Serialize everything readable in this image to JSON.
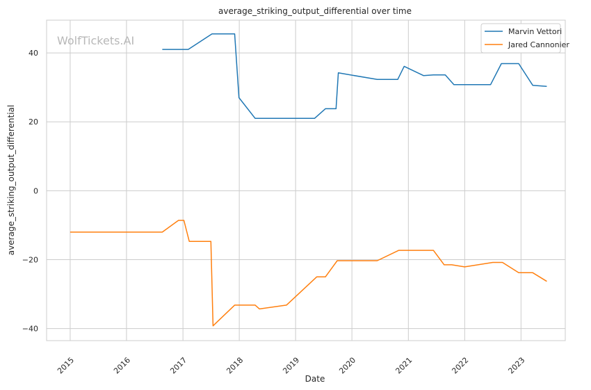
{
  "chart_data": {
    "type": "line",
    "title": "average_striking_output_differential over time",
    "xlabel": "Date",
    "ylabel": "average_striking_output_differential",
    "watermark": "WolfTickets.AI",
    "xlim": [
      "2014-08-01",
      "2023-10-15"
    ],
    "ylim": [
      -43.5,
      49.5
    ],
    "x_ticks": [
      "2015",
      "2016",
      "2017",
      "2018",
      "2019",
      "2020",
      "2021",
      "2022",
      "2023"
    ],
    "y_ticks": [
      -40,
      -20,
      0,
      20,
      40
    ],
    "y_tick_labels": [
      "−40",
      "−20",
      "0",
      "20",
      "40"
    ],
    "grid": true,
    "legend_position": "top-right",
    "series": [
      {
        "name": "Marvin Vettori",
        "color": "#1f77b4",
        "points": [
          [
            "2016-08-20",
            41.0
          ],
          [
            "2017-02-04",
            41.0
          ],
          [
            "2017-07-08",
            45.5
          ],
          [
            "2017-12-02",
            45.5
          ],
          [
            "2017-12-30",
            27.0
          ],
          [
            "2018-04-14",
            21.0
          ],
          [
            "2019-05-04",
            21.0
          ],
          [
            "2019-07-13",
            23.8
          ],
          [
            "2019-09-20",
            23.8
          ],
          [
            "2019-10-05",
            34.2
          ],
          [
            "2020-06-13",
            32.3
          ],
          [
            "2020-10-24",
            32.3
          ],
          [
            "2020-12-05",
            36.1
          ],
          [
            "2021-04-10",
            33.4
          ],
          [
            "2021-06-12",
            33.6
          ],
          [
            "2021-08-28",
            33.6
          ],
          [
            "2021-10-23",
            30.8
          ],
          [
            "2022-06-18",
            30.8
          ],
          [
            "2022-08-27",
            36.9
          ],
          [
            "2022-12-17",
            36.9
          ],
          [
            "2023-03-18",
            30.6
          ],
          [
            "2023-06-17",
            30.3
          ]
        ]
      },
      {
        "name": "Jared Cannonier",
        "color": "#ff7f0e",
        "points": [
          [
            "2015-01-01",
            -12.0
          ],
          [
            "2016-08-20",
            -12.0
          ],
          [
            "2016-12-03",
            -8.6
          ],
          [
            "2017-01-07",
            -8.6
          ],
          [
            "2017-02-11",
            -14.7
          ],
          [
            "2017-07-01",
            -14.7
          ],
          [
            "2017-07-15",
            -39.2
          ],
          [
            "2017-12-02",
            -33.2
          ],
          [
            "2018-04-14",
            -33.2
          ],
          [
            "2018-05-12",
            -34.3
          ],
          [
            "2018-11-03",
            -33.2
          ],
          [
            "2019-05-18",
            -25.0
          ],
          [
            "2019-07-13",
            -25.0
          ],
          [
            "2019-09-28",
            -20.3
          ],
          [
            "2020-06-13",
            -20.3
          ],
          [
            "2020-10-31",
            -17.3
          ],
          [
            "2021-06-12",
            -17.3
          ],
          [
            "2021-08-21",
            -21.5
          ],
          [
            "2021-10-09",
            -21.5
          ],
          [
            "2022-01-01",
            -22.1
          ],
          [
            "2022-07-02",
            -20.8
          ],
          [
            "2022-09-03",
            -20.8
          ],
          [
            "2022-12-17",
            -23.8
          ],
          [
            "2023-03-18",
            -23.8
          ],
          [
            "2023-06-17",
            -26.3
          ]
        ]
      }
    ]
  }
}
